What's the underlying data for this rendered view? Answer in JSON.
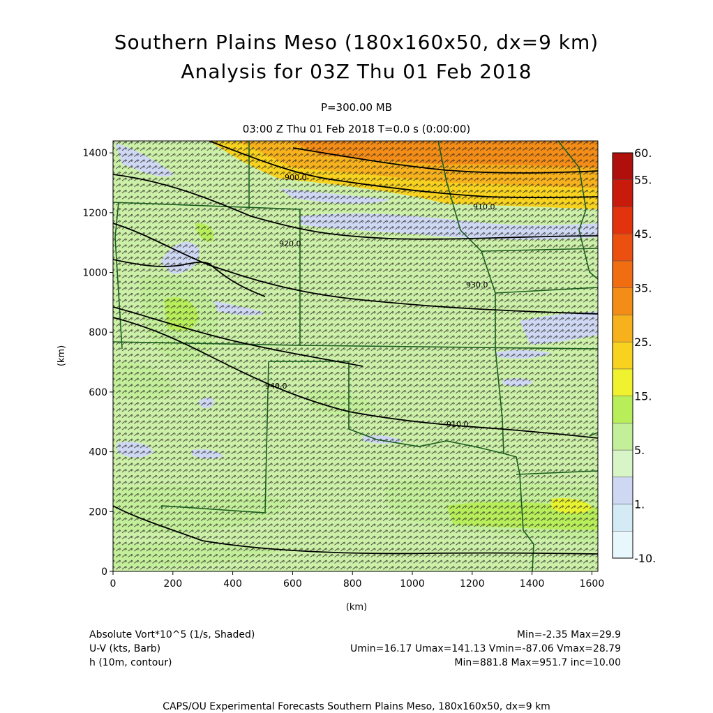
{
  "header": {
    "title_line1": "Southern Plains Meso (180x160x50, dx=9 km)",
    "title_line2": "Analysis for 03Z Thu 01 Feb 2018",
    "level": "P=300.00 MB",
    "time_line": "03:00 Z Thu 01 Feb 2018   T=0.0 s (0:00:00)"
  },
  "axes": {
    "x_label": "(km)",
    "y_label": "(km)",
    "x_ticks": [
      "0",
      "200",
      "400",
      "600",
      "800",
      "1000",
      "1200",
      "1400",
      "1600"
    ],
    "y_ticks": [
      "0",
      "200",
      "400",
      "600",
      "800",
      "1000",
      "1200",
      "1400"
    ]
  },
  "colorbar": {
    "labels": [
      "60.",
      "55.",
      "45.",
      "35.",
      "25.",
      "15.",
      "5.",
      "1.",
      "-10."
    ],
    "colors": [
      "#e8f7fb",
      "#d4ebf5",
      "#cfd8f3",
      "#d8f5c8",
      "#c4ef9a",
      "#b8ee5a",
      "#f0f230",
      "#f7d21f",
      "#f7b11d",
      "#f48d17",
      "#f06d12",
      "#ec5010",
      "#e2320e",
      "#c91b0b",
      "#b0100b"
    ]
  },
  "contour_labels": [
    "900.0",
    "910.0",
    "920.0",
    "930.0",
    "940.0",
    "920.0",
    "910.0"
  ],
  "legend": {
    "row1_left": "Absolute Vort*10^5 (1/s, Shaded)",
    "row1_right": "Min=-2.35 Max=29.9",
    "row2_left": "U-V (kts, Barb)",
    "row2_right": "Umin=16.17 Umax=141.13 Vmin=-87.06 Vmax=28.79",
    "row3_left": "h (10m, contour)",
    "row3_right": "Min=881.8 Max=951.7 inc=10.00"
  },
  "footer": "CAPS/OU Experimental Forecasts  Southern Plains Meso, 180x160x50, dx=9 km"
}
